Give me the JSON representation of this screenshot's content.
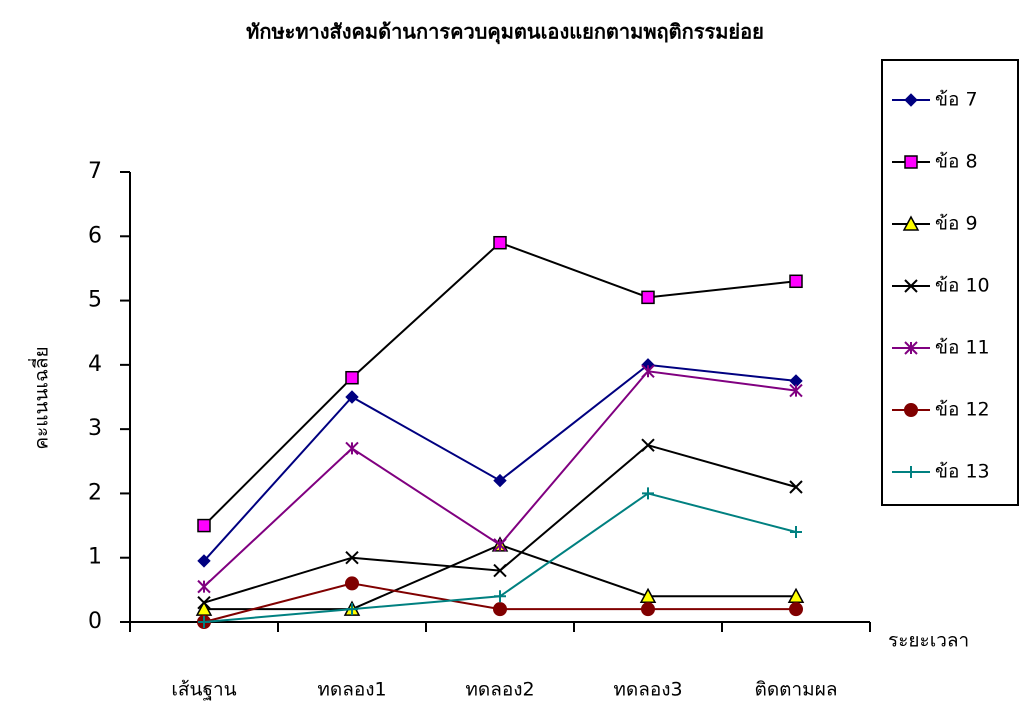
{
  "chart_data": {
    "type": "line",
    "title": "ทักษะทางสังคมด้านการควบคุมตนเองแยกตามพฤติกรรมย่อย",
    "y_label": "คะแนนเฉลี่ย",
    "x_label": "ระยะเวลา",
    "categories": [
      "เส้นฐาน",
      "ทดลอง1",
      "ทดลอง2",
      "ทดลอง3",
      "ติดตามผล"
    ],
    "ylim": [
      0,
      7
    ],
    "yticks": [
      0,
      1,
      2,
      3,
      4,
      5,
      6,
      7
    ],
    "legend": "right",
    "series": [
      {
        "name": "ข้อ 7",
        "color": "#000080",
        "marker": "diamond",
        "marker_color": "#000080",
        "values": [
          0.95,
          3.5,
          2.2,
          4.0,
          3.75
        ]
      },
      {
        "name": "ข้อ 8",
        "color": "#000000",
        "marker": "square",
        "marker_color": "#ff00ff",
        "values": [
          1.5,
          3.8,
          5.9,
          5.05,
          5.3
        ]
      },
      {
        "name": "ข้อ 9",
        "color": "#000000",
        "marker": "triangle",
        "marker_color": "#ffff00",
        "values": [
          0.2,
          0.2,
          1.2,
          0.4,
          0.4
        ]
      },
      {
        "name": "ข้อ 10",
        "color": "#000000",
        "marker": "x",
        "marker_color": "#000000",
        "values": [
          0.3,
          1.0,
          0.8,
          2.75,
          2.1
        ]
      },
      {
        "name": "ข้อ 11",
        "color": "#800080",
        "marker": "asterisk",
        "marker_color": "#800080",
        "values": [
          0.55,
          2.7,
          1.2,
          3.9,
          3.6
        ]
      },
      {
        "name": "ข้อ 12",
        "color": "#800000",
        "marker": "circle",
        "marker_color": "#800000",
        "values": [
          0,
          0.6,
          0.2,
          0.2,
          0.2
        ]
      },
      {
        "name": "ข้อ 13",
        "color": "#008080",
        "marker": "plus",
        "marker_color": "#008080",
        "values": [
          0,
          0.2,
          0.4,
          2.0,
          1.4
        ]
      }
    ]
  }
}
